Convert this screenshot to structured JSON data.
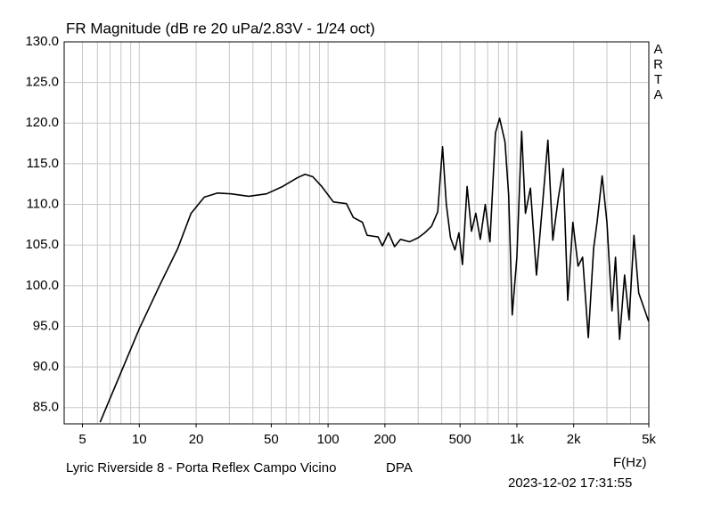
{
  "chart_data": {
    "type": "line",
    "title": "FR Magnitude (dB re 20 uPa/2.83V - 1/24 oct)",
    "side_label": "ARTA",
    "x_label": "F(Hz)",
    "footer_left": "Lyric Riverside 8 - Porta Reflex Campo Vicino",
    "footer_mid": "DPA",
    "timestamp": "2023-12-02  17:31:55",
    "x_log": true,
    "grid": true,
    "color": "#000000",
    "xlim": [
      4,
      5000
    ],
    "ylim": [
      83,
      130
    ],
    "xticks": [
      5,
      10,
      20,
      50,
      100,
      200,
      500,
      {
        "value": 1000,
        "label": "1k"
      },
      {
        "value": 2000,
        "label": "2k"
      },
      {
        "value": 5000,
        "label": "5k"
      }
    ],
    "xgrid": [
      4,
      5,
      6,
      7,
      8,
      9,
      10,
      20,
      30,
      40,
      50,
      60,
      70,
      80,
      90,
      100,
      200,
      300,
      400,
      500,
      600,
      700,
      800,
      900,
      1000,
      2000,
      3000,
      4000,
      5000
    ],
    "yticks": [
      {
        "value": 85,
        "label": "85.0"
      },
      {
        "value": 90,
        "label": "90.0"
      },
      {
        "value": 95,
        "label": "95.0"
      },
      {
        "value": 100,
        "label": "100.0"
      },
      {
        "value": 105,
        "label": "105.0"
      },
      {
        "value": 110,
        "label": "110.0"
      },
      {
        "value": 115,
        "label": "115.0"
      },
      {
        "value": 120,
        "label": "120.0"
      },
      {
        "value": 125,
        "label": "125.0"
      },
      {
        "value": 130,
        "label": "130.0"
      }
    ],
    "x": [
      6.2,
      10,
      12.8,
      16,
      18.8,
      22.1,
      26,
      30.6,
      38,
      47.2,
      57.4,
      69,
      75.5,
      83,
      92.6,
      106.7,
      125,
      136,
      152,
      161,
      184,
      194,
      209,
      225,
      242,
      270,
      300,
      325,
      353,
      381,
      404,
      423,
      445,
      470,
      493,
      515,
      545,
      575,
      606,
      640,
      680,
      720,
      770,
      810,
      865,
      905,
      945,
      1000,
      1060,
      1110,
      1180,
      1270,
      1370,
      1460,
      1550,
      1660,
      1760,
      1860,
      1980,
      2110,
      2230,
      2390,
      2550,
      2660,
      2830,
      3000,
      3190,
      3330,
      3500,
      3720,
      3930,
      4170,
      4420,
      4990
    ],
    "values": [
      83.2,
      94.7,
      100,
      104.6,
      108.9,
      110.9,
      111.4,
      111.3,
      111.0,
      111.3,
      112.2,
      113.3,
      113.7,
      113.4,
      112.2,
      110.3,
      110.1,
      108.4,
      107.8,
      106.2,
      106,
      104.9,
      106.5,
      104.8,
      105.7,
      105.4,
      105.9,
      106.5,
      107.3,
      109.1,
      117.1,
      110,
      105.9,
      104.4,
      106.5,
      102.6,
      112.2,
      106.7,
      108.9,
      105.7,
      110,
      105.4,
      118.8,
      120.6,
      117.7,
      111.1,
      96.4,
      103.5,
      119,
      108.9,
      112,
      101.3,
      110.2,
      117.9,
      105.6,
      110.9,
      114.4,
      98.2,
      107.8,
      102.4,
      103.5,
      93.6,
      104.6,
      107.8,
      113.5,
      107.8,
      96.9,
      103.5,
      93.4,
      101.3,
      95.8,
      106.2,
      99.1,
      95.6
    ]
  }
}
